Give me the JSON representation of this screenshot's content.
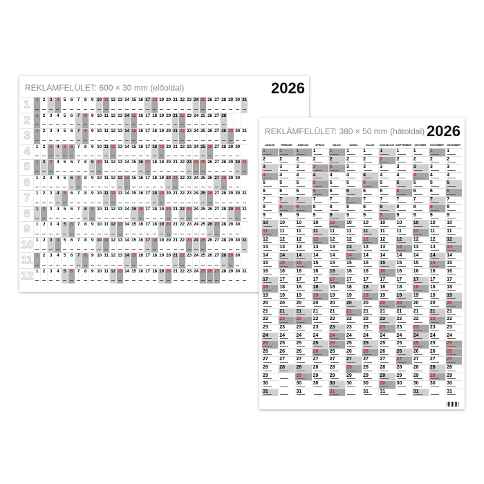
{
  "year": "2026",
  "front": {
    "title": "REKLÁMFELÜLET: 600 × 30 mm (előoldal)",
    "year": "2026"
  },
  "back": {
    "title": "REKLÁMFELÜLET: 380 × 50 mm (hátoldal)",
    "year": "2026"
  },
  "months": [
    "JANUÁR",
    "FEBRUÁR",
    "MÁRCIUS",
    "ÁPRILIS",
    "MÁJUS",
    "JÚNIUS",
    "JÚLIUS",
    "AUGUSZTUS",
    "SZEPTEMBER",
    "OKTÓBER",
    "NOVEMBER",
    "DECEMBER"
  ],
  "month_numbers": [
    "1",
    "2",
    "3",
    "4",
    "5",
    "6",
    "7",
    "8",
    "9",
    "10",
    "11",
    "12"
  ],
  "holidays": [
    "1-1",
    "3-15",
    "4-3",
    "4-5",
    "4-6",
    "5-1",
    "5-24",
    "5-25",
    "8-20",
    "10-23",
    "11-1",
    "12-25",
    "12-26"
  ],
  "colors": {
    "sunday": "#a6a6a6",
    "saturday": "#d0d0d0",
    "holiday_text": "#d42020"
  }
}
